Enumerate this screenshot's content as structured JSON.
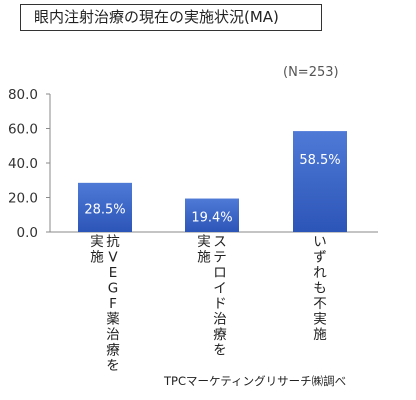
{
  "title": "眼内注射治療の現在の実施状況(MA)",
  "note": "(N=253)",
  "source": "TPCマーケティングリサーチ㈱調べ",
  "colors": {
    "bar_top": "#4f7ad6",
    "bar_bottom": "#2c55b8",
    "axis": "#8a8a8a",
    "label": "#ffffff"
  },
  "chart_data": {
    "type": "bar",
    "categories": [
      "抗VEGF薬治療を実施",
      "ステロイド治療を実施",
      "いずれも不実施"
    ],
    "category_lines": [
      [
        "抗VEGF薬治療を",
        "実施"
      ],
      [
        "ステロイド治療を",
        "実施"
      ],
      [
        "いずれも不実施"
      ]
    ],
    "values": [
      28.5,
      19.4,
      58.5
    ],
    "value_labels": [
      "28.5%",
      "19.4%",
      "58.5%"
    ],
    "ylim": [
      0,
      80
    ],
    "yticks": [
      0,
      20,
      40,
      60,
      80
    ],
    "ytick_labels": [
      "0.0",
      "20.0",
      "40.0",
      "60.0",
      "80.0"
    ],
    "grid": false,
    "legend": false
  }
}
